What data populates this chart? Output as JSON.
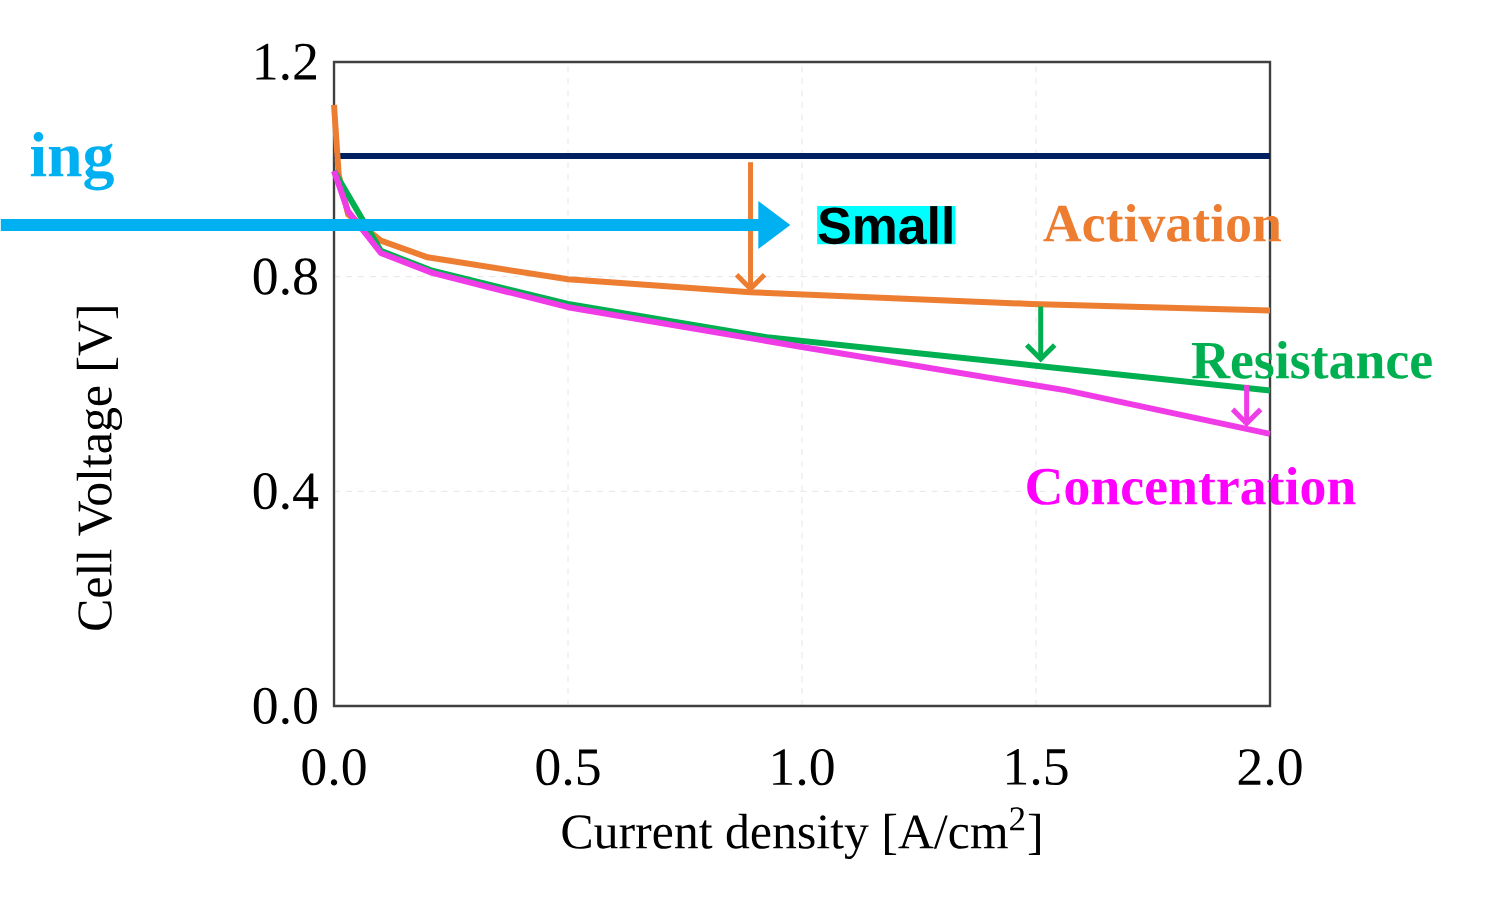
{
  "chart_data": {
    "type": "line",
    "xlabel": "Current density [A/cm$^{2}$]",
    "ylabel": "Cell Voltage [V]",
    "xlim": [
      0,
      2
    ],
    "ylim": [
      0,
      1.2
    ],
    "xticks": [
      {
        "value": 0,
        "label": "0.0"
      },
      0.5,
      {
        "value": 1,
        "label": "1.0"
      },
      1.5,
      {
        "value": 2,
        "label": "2.0"
      }
    ],
    "yticks": [
      {
        "value": 0,
        "label": "0.0"
      },
      0.4,
      0.8,
      1.2
    ],
    "grid": true,
    "marker": "none",
    "ref_lines": [
      {
        "axis": "y",
        "value": 1.025,
        "color": "#002060"
      }
    ],
    "series": [
      {
        "color": "#ed7d31",
        "x": [
          0,
          0.01,
          0.03,
          0.1,
          0.2,
          0.5,
          0.89,
          1.49,
          2.0
        ],
        "values": [
          1.12,
          0.99,
          0.916,
          0.867,
          0.836,
          0.795,
          0.771,
          0.749,
          0.737
        ]
      },
      {
        "color": "#00b050",
        "x": [
          0,
          0.1,
          0.21,
          0.5,
          0.925,
          1.49,
          2.0
        ],
        "values": [
          0.997,
          0.848,
          0.811,
          0.749,
          0.687,
          0.635,
          0.588
        ]
      },
      {
        "color": "#f03ce6",
        "x": [
          0,
          0.03,
          0.1,
          0.21,
          0.5,
          1.0,
          1.565,
          2.0
        ],
        "values": [
          0.997,
          0.922,
          0.844,
          0.807,
          0.743,
          0.669,
          0.588,
          0.507
        ]
      }
    ],
    "annotations": [
      "ing",
      "Small",
      "Activation",
      {
        "text": "Resistance",
        "x": 1.51,
        "y": 0.64
      },
      {
        "text": "Concentration",
        "x": 1.95,
        "y": 0.52
      }
    ]
  }
}
